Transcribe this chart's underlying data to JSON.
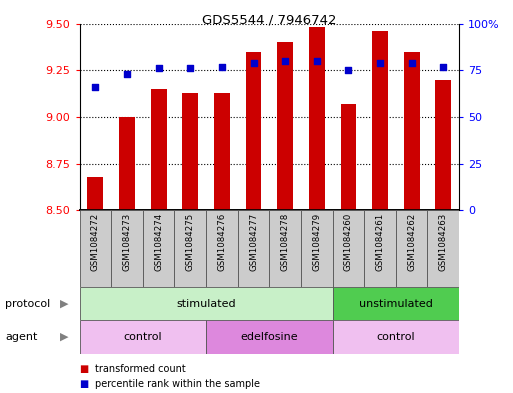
{
  "title": "GDS5544 / 7946742",
  "samples": [
    "GSM1084272",
    "GSM1084273",
    "GSM1084274",
    "GSM1084275",
    "GSM1084276",
    "GSM1084277",
    "GSM1084278",
    "GSM1084279",
    "GSM1084260",
    "GSM1084261",
    "GSM1084262",
    "GSM1084263"
  ],
  "bar_values": [
    8.68,
    9.0,
    9.15,
    9.13,
    9.13,
    9.35,
    9.4,
    9.48,
    9.07,
    9.46,
    9.35,
    9.2
  ],
  "dot_values": [
    66,
    73,
    76,
    76,
    77,
    79,
    80,
    80,
    75,
    79,
    79,
    77
  ],
  "ymin": 8.5,
  "ymax": 9.5,
  "yticks": [
    8.5,
    8.75,
    9.0,
    9.25,
    9.5
  ],
  "right_yticks": [
    0,
    25,
    50,
    75,
    100
  ],
  "bar_color": "#cc0000",
  "dot_color": "#0000cc",
  "protocol_groups": [
    {
      "label": "stimulated",
      "start": 0,
      "end": 8,
      "color": "#c8f0c8"
    },
    {
      "label": "unstimulated",
      "start": 8,
      "end": 12,
      "color": "#50cc50"
    }
  ],
  "agent_groups": [
    {
      "label": "control",
      "start": 0,
      "end": 4,
      "color": "#f0c0f0"
    },
    {
      "label": "edelfosine",
      "start": 4,
      "end": 8,
      "color": "#dd88dd"
    },
    {
      "label": "control",
      "start": 8,
      "end": 12,
      "color": "#f0c0f0"
    }
  ],
  "legend_bar_label": "transformed count",
  "legend_dot_label": "percentile rank within the sample"
}
